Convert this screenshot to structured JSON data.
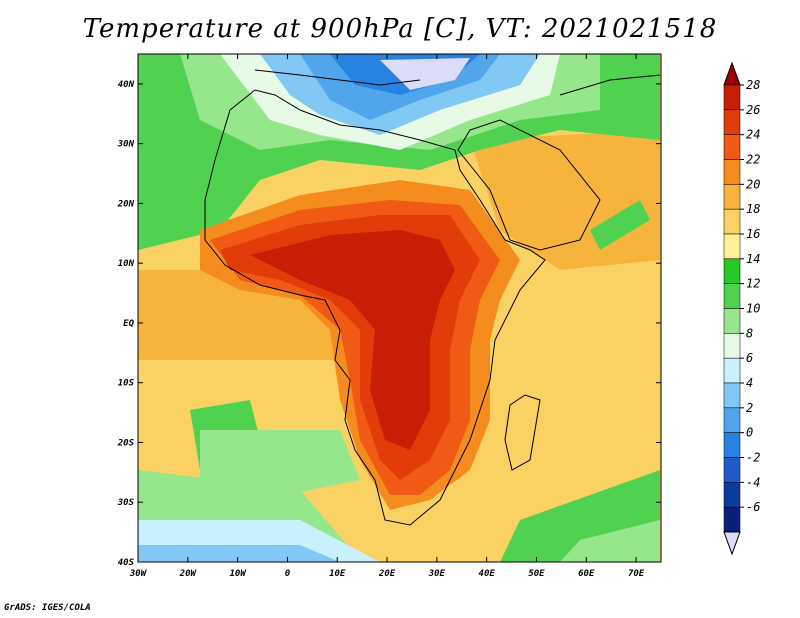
{
  "title": "Temperature at 900hPa [C], VT: 2021021518",
  "credit": "GrADS: IGES/COLA",
  "map": {
    "lon_labels": [
      "30W",
      "20W",
      "10W",
      "0",
      "10E",
      "20E",
      "30E",
      "40E",
      "50E",
      "60E",
      "70E"
    ],
    "lat_labels": [
      "40N",
      "30N",
      "20N",
      "10N",
      "EQ",
      "10S",
      "20S",
      "30S",
      "40S"
    ]
  },
  "colorbar": {
    "labels": [
      "28",
      "26",
      "24",
      "22",
      "20",
      "18",
      "16",
      "14",
      "12",
      "10",
      "8",
      "6",
      "4",
      "2",
      "0",
      "-2",
      "-4",
      "-6"
    ],
    "colors": [
      "#c81e05",
      "#e13c0a",
      "#f05a14",
      "#f58c1e",
      "#f7b43c",
      "#fad264",
      "#fff096",
      "#28c828",
      "#50d250",
      "#96e68c",
      "#e6fae6",
      "#c8f0ff",
      "#82c8f5",
      "#50a5eb",
      "#2882e1",
      "#1e5ac8",
      "#0a3ca0",
      "#0a1e78"
    ],
    "top_triangle_color": "#a00000",
    "bottom_triangle_color": "#dcdcfa"
  }
}
